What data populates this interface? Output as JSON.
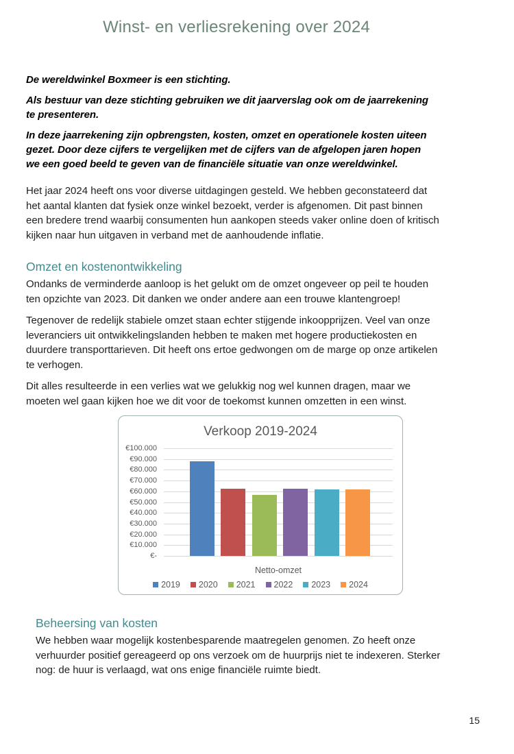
{
  "page": {
    "title": "Winst- en verliesrekening over 2024",
    "page_number": "15"
  },
  "intro": {
    "bold_paragraphs": [
      "De wereldwinkel Boxmeer is een stichting.",
      "Als bestuur van deze stichting gebruiken we dit jaarverslag ook om de jaarrekening te presenteren.",
      "In deze jaarrekening zijn opbrengsten, kosten, omzet en operationele kosten uiteen gezet. Door deze cijfers te vergelijken met de cijfers van de afgelopen jaren hopen we een goed beeld te geven van de financiële situatie van onze wereldwinkel."
    ],
    "paragraph": "Het jaar 2024 heeft ons voor diverse uitdagingen gesteld. We hebben geconstateerd dat het aantal klanten dat fysiek onze winkel bezoekt, verder is afgenomen. Dit past binnen een bredere trend waarbij consumenten hun aankopen steeds vaker online doen of kritisch kijken naar hun uitgaven in verband met de aanhoudende inflatie."
  },
  "sections": [
    {
      "heading": "Omzet en kostenontwikkeling",
      "paragraphs": [
        "Ondanks de verminderde aanloop is het  gelukt om de omzet ongeveer op peil te houden ten opzichte van 2023. Dit danken we onder andere aan een trouwe klantengroep!",
        "Tegenover de redelijk stabiele omzet staan echter stijgende inkoopprijzen. Veel van onze leveranciers uit ontwikkelingslanden hebben te maken met hogere productiekosten en duurdere transporttarieven. Dit heeft ons ertoe gedwongen om de marge op onze artikelen te verhogen.",
        "Dit alles resulteerde in een verlies wat we gelukkig nog wel kunnen dragen, maar we moeten wel gaan kijken hoe we dit voor de toekomst kunnen omzetten in een winst."
      ]
    },
    {
      "heading": "Beheersing van kosten",
      "paragraphs": [
        "We hebben waar mogelijk kostenbesparende maatregelen genomen. Zo heeft onze verhuurder positief gereageerd op ons verzoek om de huurprijs niet te indexeren. Sterker nog: de huur is verlaagd, wat ons enige financiële ruimte biedt."
      ]
    }
  ],
  "chart_data": {
    "type": "bar",
    "title": "Verkoop 2019-2024",
    "xlabel": "Netto-omzet",
    "ylabel": "",
    "categories": [
      "Netto-omzet"
    ],
    "ylim": [
      0,
      100000
    ],
    "grid": true,
    "legend_position": "bottom",
    "series": [
      {
        "name": "2019",
        "values": [
          88000
        ],
        "color": "#4F81BD"
      },
      {
        "name": "2020",
        "values": [
          62500
        ],
        "color": "#C0504D"
      },
      {
        "name": "2021",
        "values": [
          57000
        ],
        "color": "#9BBB59"
      },
      {
        "name": "2022",
        "values": [
          62500
        ],
        "color": "#8064A2"
      },
      {
        "name": "2023",
        "values": [
          62000
        ],
        "color": "#4BACC6"
      },
      {
        "name": "2024",
        "values": [
          61800
        ],
        "color": "#F79646"
      }
    ],
    "y_ticks": [
      {
        "value": 100000,
        "label": "€100.000"
      },
      {
        "value": 90000,
        "label": "€90.000"
      },
      {
        "value": 80000,
        "label": "€80.000"
      },
      {
        "value": 70000,
        "label": "€70.000"
      },
      {
        "value": 60000,
        "label": "€60.000"
      },
      {
        "value": 50000,
        "label": "€50.000"
      },
      {
        "value": 40000,
        "label": "€40.000"
      },
      {
        "value": 30000,
        "label": "€30.000"
      },
      {
        "value": 20000,
        "label": "€20.000"
      },
      {
        "value": 10000,
        "label": "€10.000"
      },
      {
        "value": 0,
        "label": "€-"
      }
    ]
  },
  "colors": {
    "title": "#6B8678",
    "heading": "#428A8C",
    "chart_border": "#9FB4AE",
    "chart_text": "#595959",
    "gridline": "#D9D9D9"
  }
}
